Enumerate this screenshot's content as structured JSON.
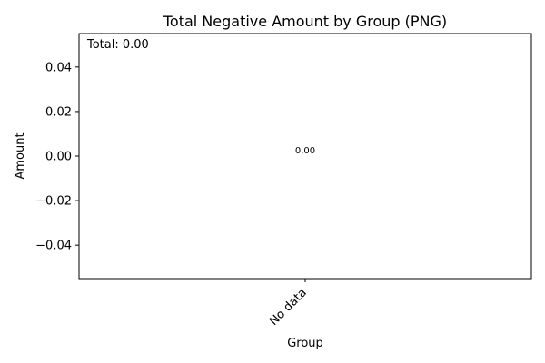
{
  "chart_data": {
    "type": "bar",
    "title": "Total Negative Amount by Group (PNG)",
    "xlabel": "Group",
    "ylabel": "Amount",
    "categories": [
      "No data"
    ],
    "values": [
      0
    ],
    "data_labels": [
      "0.00"
    ],
    "ylim": [
      -0.055,
      0.055
    ],
    "yticks": [
      -0.04,
      -0.02,
      0.0,
      0.02,
      0.04
    ],
    "ytick_labels": [
      "−0.04",
      "−0.02",
      "0.00",
      "0.02",
      "0.04"
    ],
    "annotation": "Total: 0.00",
    "grid": false,
    "legend": "none",
    "colors": {
      "axis": "#000000",
      "text": "#000000",
      "background": "#ffffff"
    }
  }
}
